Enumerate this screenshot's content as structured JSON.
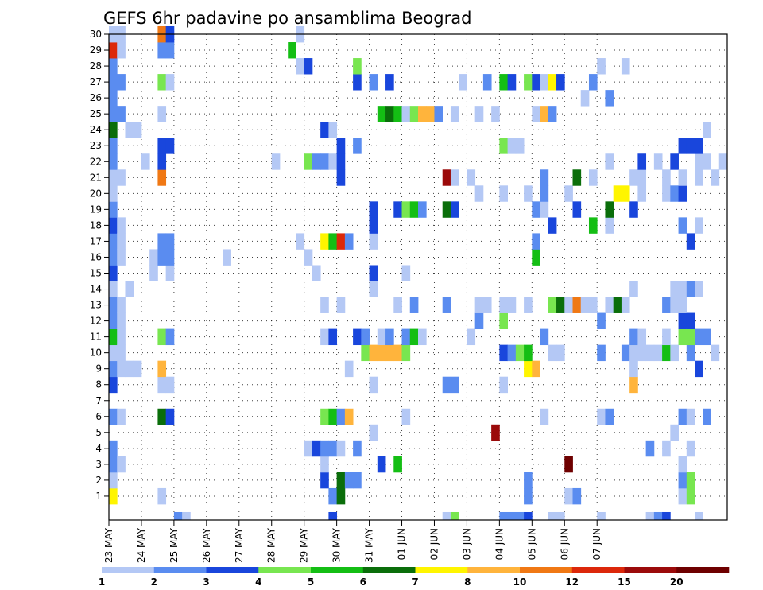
{
  "chart_data": {
    "type": "heatmap",
    "title": "GEFS 6hr padavine po ansamblima Beograd",
    "xlabel": "",
    "ylabel": "",
    "y_ticks": [
      1,
      2,
      3,
      4,
      5,
      6,
      7,
      8,
      9,
      10,
      11,
      12,
      13,
      14,
      15,
      16,
      17,
      18,
      19,
      20,
      21,
      22,
      23,
      24,
      25,
      26,
      27,
      28,
      29,
      30
    ],
    "x_ticks": [
      "23 MAY",
      "24 MAY",
      "25 MAY",
      "26 MAY",
      "27 MAY",
      "28 MAY",
      "29 MAY",
      "30 MAY",
      "31 MAY",
      "01 JUN",
      "02 JUN",
      "03 JUN",
      "04 JUN",
      "05 JUN",
      "06 JUN",
      "07 JUN"
    ],
    "x_step_hours": 6,
    "n_steps": 61,
    "grid": true,
    "legend": {
      "placement": "bottom",
      "labels": [
        "1",
        "2",
        "3",
        "4",
        "5",
        "6",
        "7",
        "8",
        "10",
        "12",
        "15",
        "20"
      ],
      "colors": [
        "#b4c8f5",
        "#5a8cf0",
        "#1946dc",
        "#78e650",
        "#14be14",
        "#0a6e0a",
        "#fff500",
        "#ffb43c",
        "#f07814",
        "#dc280a",
        "#9b0a0a",
        "#6e0000"
      ]
    },
    "cells": [
      [
        0,
        1,
        6
      ],
      [
        0,
        2,
        0
      ],
      [
        0,
        3,
        1
      ],
      [
        0,
        4,
        1
      ],
      [
        0,
        6,
        1
      ],
      [
        0,
        8,
        2
      ],
      [
        0,
        9,
        1
      ],
      [
        0,
        10,
        0
      ],
      [
        0,
        11,
        4
      ],
      [
        0,
        12,
        1
      ],
      [
        0,
        13,
        1
      ],
      [
        0,
        14,
        0
      ],
      [
        0,
        15,
        2
      ],
      [
        0,
        16,
        1
      ],
      [
        0,
        17,
        1
      ],
      [
        0,
        18,
        2
      ],
      [
        0,
        19,
        1
      ],
      [
        0,
        20,
        0
      ],
      [
        0,
        21,
        0
      ],
      [
        0,
        22,
        1
      ],
      [
        0,
        23,
        1
      ],
      [
        0,
        24,
        5
      ],
      [
        0,
        25,
        1
      ],
      [
        0,
        26,
        1
      ],
      [
        0,
        27,
        1
      ],
      [
        0,
        28,
        1
      ],
      [
        0,
        29,
        9
      ],
      [
        0,
        30,
        0
      ],
      [
        1,
        3,
        0
      ],
      [
        1,
        6,
        0
      ],
      [
        1,
        9,
        0
      ],
      [
        1,
        10,
        0
      ],
      [
        1,
        11,
        0
      ],
      [
        1,
        12,
        0
      ],
      [
        1,
        13,
        0
      ],
      [
        1,
        16,
        0
      ],
      [
        1,
        17,
        0
      ],
      [
        1,
        18,
        0
      ],
      [
        1,
        21,
        0
      ],
      [
        1,
        25,
        1
      ],
      [
        1,
        27,
        1
      ],
      [
        1,
        29,
        0
      ],
      [
        1,
        30,
        0
      ],
      [
        2,
        9,
        0
      ],
      [
        2,
        14,
        0
      ],
      [
        2,
        24,
        0
      ],
      [
        3,
        9,
        0
      ],
      [
        3,
        24,
        0
      ],
      [
        4,
        22,
        0
      ],
      [
        5,
        15,
        0
      ],
      [
        5,
        16,
        0
      ],
      [
        6,
        1,
        0
      ],
      [
        6,
        6,
        5
      ],
      [
        6,
        8,
        0
      ],
      [
        6,
        9,
        7
      ],
      [
        6,
        11,
        3
      ],
      [
        6,
        16,
        1
      ],
      [
        6,
        17,
        1
      ],
      [
        6,
        21,
        8
      ],
      [
        6,
        22,
        2
      ],
      [
        6,
        23,
        2
      ],
      [
        6,
        25,
        0
      ],
      [
        6,
        27,
        3
      ],
      [
        6,
        29,
        1
      ],
      [
        6,
        30,
        8
      ],
      [
        7,
        6,
        2
      ],
      [
        7,
        8,
        0
      ],
      [
        7,
        11,
        1
      ],
      [
        7,
        15,
        0
      ],
      [
        7,
        16,
        1
      ],
      [
        7,
        17,
        1
      ],
      [
        7,
        23,
        2
      ],
      [
        7,
        27,
        0
      ],
      [
        7,
        29,
        1
      ],
      [
        7,
        30,
        2
      ],
      [
        8,
        0,
        1
      ],
      [
        9,
        0,
        0
      ],
      [
        14,
        16,
        0
      ],
      [
        20,
        22,
        0
      ],
      [
        22,
        29,
        4
      ],
      [
        23,
        17,
        0
      ],
      [
        23,
        28,
        0
      ],
      [
        23,
        30,
        0
      ],
      [
        24,
        4,
        0
      ],
      [
        24,
        16,
        0
      ],
      [
        24,
        22,
        3
      ],
      [
        24,
        28,
        2
      ],
      [
        25,
        4,
        2
      ],
      [
        25,
        15,
        0
      ],
      [
        25,
        22,
        1
      ],
      [
        26,
        2,
        2
      ],
      [
        26,
        3,
        0
      ],
      [
        26,
        4,
        1
      ],
      [
        26,
        6,
        3
      ],
      [
        26,
        11,
        0
      ],
      [
        26,
        13,
        0
      ],
      [
        26,
        17,
        6
      ],
      [
        26,
        22,
        1
      ],
      [
        26,
        24,
        2
      ],
      [
        27,
        0,
        2
      ],
      [
        27,
        1,
        1
      ],
      [
        27,
        4,
        1
      ],
      [
        27,
        6,
        4
      ],
      [
        27,
        11,
        2
      ],
      [
        27,
        17,
        4
      ],
      [
        27,
        22,
        0
      ],
      [
        27,
        24,
        0
      ],
      [
        28,
        1,
        5
      ],
      [
        28,
        2,
        5
      ],
      [
        28,
        4,
        0
      ],
      [
        28,
        6,
        1
      ],
      [
        28,
        13,
        0
      ],
      [
        28,
        17,
        9
      ],
      [
        28,
        21,
        2
      ],
      [
        28,
        22,
        2
      ],
      [
        28,
        23,
        2
      ],
      [
        29,
        2,
        1
      ],
      [
        29,
        6,
        7
      ],
      [
        29,
        9,
        0
      ],
      [
        29,
        17,
        1
      ],
      [
        30,
        2,
        1
      ],
      [
        30,
        4,
        1
      ],
      [
        30,
        11,
        2
      ],
      [
        30,
        23,
        1
      ],
      [
        30,
        27,
        2
      ],
      [
        30,
        28,
        3
      ],
      [
        31,
        10,
        3
      ],
      [
        31,
        11,
        1
      ],
      [
        32,
        5,
        0
      ],
      [
        32,
        8,
        0
      ],
      [
        32,
        10,
        7
      ],
      [
        32,
        14,
        0
      ],
      [
        32,
        15,
        2
      ],
      [
        32,
        17,
        0
      ],
      [
        32,
        18,
        2
      ],
      [
        32,
        19,
        2
      ],
      [
        32,
        27,
        1
      ],
      [
        33,
        3,
        2
      ],
      [
        33,
        10,
        7
      ],
      [
        33,
        11,
        0
      ],
      [
        33,
        25,
        4
      ],
      [
        34,
        10,
        7
      ],
      [
        34,
        11,
        1
      ],
      [
        34,
        25,
        5
      ],
      [
        34,
        27,
        2
      ],
      [
        35,
        3,
        4
      ],
      [
        35,
        10,
        7
      ],
      [
        35,
        13,
        0
      ],
      [
        35,
        19,
        2
      ],
      [
        35,
        25,
        4
      ],
      [
        36,
        6,
        0
      ],
      [
        36,
        10,
        3
      ],
      [
        36,
        11,
        1
      ],
      [
        36,
        15,
        0
      ],
      [
        36,
        19,
        3
      ],
      [
        36,
        25,
        0
      ],
      [
        37,
        11,
        4
      ],
      [
        37,
        13,
        1
      ],
      [
        37,
        19,
        4
      ],
      [
        37,
        25,
        3
      ],
      [
        38,
        11,
        0
      ],
      [
        38,
        19,
        1
      ],
      [
        38,
        25,
        7
      ],
      [
        39,
        25,
        7
      ],
      [
        40,
        25,
        1
      ],
      [
        41,
        0,
        0
      ],
      [
        41,
        8,
        1
      ],
      [
        41,
        13,
        1
      ],
      [
        41,
        19,
        5
      ],
      [
        41,
        21,
        10
      ],
      [
        42,
        0,
        3
      ],
      [
        42,
        8,
        1
      ],
      [
        42,
        19,
        2
      ],
      [
        42,
        21,
        0
      ],
      [
        42,
        25,
        0
      ],
      [
        43,
        27,
        0
      ],
      [
        44,
        11,
        0
      ],
      [
        44,
        21,
        0
      ],
      [
        45,
        12,
        1
      ],
      [
        45,
        13,
        0
      ],
      [
        45,
        20,
        0
      ],
      [
        45,
        25,
        0
      ],
      [
        46,
        13,
        0
      ],
      [
        46,
        27,
        1
      ],
      [
        47,
        5,
        10
      ],
      [
        47,
        25,
        0
      ],
      [
        48,
        0,
        1
      ],
      [
        48,
        8,
        0
      ],
      [
        48,
        10,
        2
      ],
      [
        48,
        12,
        3
      ],
      [
        48,
        13,
        0
      ],
      [
        48,
        20,
        0
      ],
      [
        48,
        23,
        3
      ],
      [
        48,
        27,
        4
      ],
      [
        49,
        0,
        1
      ],
      [
        49,
        10,
        1
      ],
      [
        49,
        13,
        0
      ],
      [
        49,
        23,
        0
      ],
      [
        49,
        27,
        2
      ],
      [
        50,
        0,
        1
      ],
      [
        50,
        10,
        3
      ],
      [
        50,
        23,
        0
      ],
      [
        51,
        0,
        2
      ],
      [
        51,
        1,
        1
      ],
      [
        51,
        2,
        1
      ],
      [
        51,
        9,
        6
      ],
      [
        51,
        10,
        4
      ],
      [
        51,
        13,
        0
      ],
      [
        51,
        20,
        0
      ],
      [
        51,
        27,
        3
      ],
      [
        52,
        9,
        7
      ],
      [
        52,
        16,
        4
      ],
      [
        52,
        17,
        1
      ],
      [
        52,
        19,
        1
      ],
      [
        52,
        25,
        0
      ],
      [
        52,
        27,
        2
      ],
      [
        53,
        6,
        0
      ],
      [
        53,
        11,
        1
      ],
      [
        53,
        19,
        0
      ],
      [
        53,
        20,
        1
      ],
      [
        53,
        21,
        1
      ],
      [
        53,
        25,
        7
      ],
      [
        53,
        27,
        0
      ],
      [
        54,
        0,
        0
      ],
      [
        54,
        10,
        0
      ],
      [
        54,
        13,
        3
      ],
      [
        54,
        18,
        2
      ],
      [
        54,
        25,
        1
      ],
      [
        54,
        27,
        6
      ],
      [
        55,
        0,
        0
      ],
      [
        55,
        10,
        0
      ],
      [
        55,
        13,
        5
      ],
      [
        55,
        27,
        2
      ],
      [
        56,
        1,
        0
      ],
      [
        56,
        3,
        11
      ],
      [
        56,
        13,
        0
      ],
      [
        56,
        20,
        0
      ],
      [
        57,
        1,
        1
      ],
      [
        57,
        13,
        8
      ],
      [
        57,
        19,
        2
      ],
      [
        57,
        21,
        5
      ],
      [
        58,
        13,
        0
      ],
      [
        58,
        26,
        0
      ],
      [
        59,
        13,
        0
      ],
      [
        59,
        18,
        4
      ],
      [
        59,
        21,
        0
      ],
      [
        59,
        27,
        1
      ],
      [
        60,
        0,
        0
      ],
      [
        60,
        6,
        0
      ],
      [
        60,
        10,
        1
      ],
      [
        60,
        12,
        1
      ],
      [
        60,
        28,
        0
      ],
      [
        61,
        6,
        1
      ],
      [
        61,
        13,
        0
      ],
      [
        61,
        18,
        0
      ],
      [
        61,
        19,
        5
      ],
      [
        61,
        22,
        0
      ],
      [
        61,
        26,
        1
      ],
      [
        62,
        13,
        5
      ],
      [
        62,
        20,
        6
      ],
      [
        63,
        10,
        1
      ],
      [
        63,
        13,
        0
      ],
      [
        63,
        20,
        6
      ],
      [
        63,
        28,
        0
      ],
      [
        64,
        8,
        7
      ],
      [
        64,
        9,
        0
      ],
      [
        64,
        10,
        0
      ],
      [
        64,
        11,
        1
      ],
      [
        64,
        14,
        0
      ],
      [
        64,
        19,
        2
      ],
      [
        64,
        21,
        0
      ],
      [
        65,
        10,
        0
      ],
      [
        65,
        11,
        0
      ],
      [
        65,
        20,
        0
      ],
      [
        65,
        21,
        0
      ],
      [
        65,
        22,
        2
      ],
      [
        66,
        0,
        0
      ],
      [
        66,
        4,
        1
      ],
      [
        66,
        10,
        0
      ],
      [
        67,
        0,
        1
      ],
      [
        67,
        10,
        0
      ],
      [
        67,
        22,
        0
      ],
      [
        68,
        0,
        2
      ],
      [
        68,
        4,
        0
      ],
      [
        68,
        10,
        4
      ],
      [
        68,
        11,
        0
      ],
      [
        68,
        13,
        1
      ],
      [
        68,
        20,
        0
      ],
      [
        68,
        21,
        0
      ],
      [
        69,
        5,
        0
      ],
      [
        69,
        10,
        0
      ],
      [
        69,
        13,
        0
      ],
      [
        69,
        14,
        0
      ],
      [
        69,
        20,
        1
      ],
      [
        69,
        22,
        2
      ],
      [
        70,
        1,
        0
      ],
      [
        70,
        2,
        1
      ],
      [
        70,
        3,
        0
      ],
      [
        70,
        6,
        1
      ],
      [
        70,
        11,
        3
      ],
      [
        70,
        12,
        2
      ],
      [
        70,
        13,
        0
      ],
      [
        70,
        14,
        0
      ],
      [
        70,
        18,
        1
      ],
      [
        70,
        20,
        2
      ],
      [
        70,
        21,
        0
      ],
      [
        70,
        23,
        2
      ],
      [
        71,
        1,
        3
      ],
      [
        71,
        2,
        3
      ],
      [
        71,
        4,
        0
      ],
      [
        71,
        6,
        0
      ],
      [
        71,
        10,
        1
      ],
      [
        71,
        11,
        3
      ],
      [
        71,
        12,
        2
      ],
      [
        71,
        14,
        1
      ],
      [
        71,
        17,
        2
      ],
      [
        71,
        23,
        2
      ],
      [
        72,
        0,
        0
      ],
      [
        72,
        9,
        2
      ],
      [
        72,
        11,
        1
      ],
      [
        72,
        14,
        0
      ],
      [
        72,
        18,
        0
      ],
      [
        72,
        21,
        0
      ],
      [
        72,
        22,
        0
      ],
      [
        72,
        23,
        2
      ],
      [
        73,
        6,
        1
      ],
      [
        73,
        11,
        1
      ],
      [
        73,
        22,
        0
      ],
      [
        73,
        24,
        0
      ],
      [
        74,
        10,
        0
      ],
      [
        74,
        21,
        0
      ],
      [
        75,
        22,
        0
      ]
    ],
    "cells_format": "[step, member, legend_index]"
  }
}
